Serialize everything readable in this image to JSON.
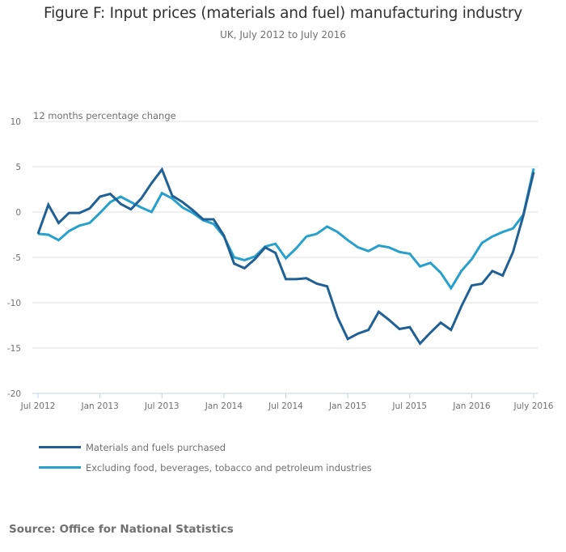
{
  "chart_data": {
    "type": "line",
    "title": "Figure F: Input prices (materials and fuel) manufacturing industry",
    "subtitle": "UK, July 2012 to July 2016",
    "ylabel": "12 months percentage change",
    "xlabel": "",
    "ylim": [
      -20,
      10
    ],
    "yticks": [
      10,
      5,
      0,
      -5,
      -10,
      -15,
      -20
    ],
    "ytick_labels": [
      "10",
      "5",
      "0",
      "-5",
      "-10",
      "-15",
      "-20"
    ],
    "xtick_labels": [
      "Jul 2012",
      "Jan 2013",
      "Jul 2013",
      "Jan 2014",
      "Jul 2014",
      "Jan 2015",
      "Jul 2015",
      "Jan 2016",
      "July 2016"
    ],
    "xtick_index": [
      0,
      6,
      12,
      18,
      24,
      30,
      36,
      42,
      48
    ],
    "x": [
      "Jul 2012",
      "Aug 2012",
      "Sep 2012",
      "Oct 2012",
      "Nov 2012",
      "Dec 2012",
      "Jan 2013",
      "Feb 2013",
      "Mar 2013",
      "Apr 2013",
      "May 2013",
      "Jun 2013",
      "Jul 2013",
      "Aug 2013",
      "Sep 2013",
      "Oct 2013",
      "Nov 2013",
      "Dec 2013",
      "Jan 2014",
      "Feb 2014",
      "Mar 2014",
      "Apr 2014",
      "May 2014",
      "Jun 2014",
      "Jul 2014",
      "Aug 2014",
      "Sep 2014",
      "Oct 2014",
      "Nov 2014",
      "Dec 2014",
      "Jan 2015",
      "Feb 2015",
      "Mar 2015",
      "Apr 2015",
      "May 2015",
      "Jun 2015",
      "Jul 2015",
      "Aug 2015",
      "Sep 2015",
      "Oct 2015",
      "Nov 2015",
      "Dec 2015",
      "Jan 2016",
      "Feb 2016",
      "Mar 2016",
      "Apr 2016",
      "May 2016",
      "Jun 2016",
      "Jul 2016"
    ],
    "series": [
      {
        "name": "Materials and fuels purchased",
        "color": "#206095",
        "values": [
          -2.4,
          0.8,
          -1.2,
          -0.1,
          -0.1,
          0.4,
          1.7,
          2.0,
          0.9,
          0.3,
          1.5,
          3.2,
          4.7,
          1.8,
          1.1,
          0.2,
          -0.8,
          -0.8,
          -2.6,
          -5.7,
          -6.2,
          -5.2,
          -3.9,
          -4.5,
          -7.4,
          -7.4,
          -7.3,
          -7.9,
          -8.2,
          -11.6,
          -14.0,
          -13.4,
          -13.0,
          -11.0,
          -11.9,
          -12.9,
          -12.7,
          -14.5,
          -13.3,
          -12.2,
          -13.0,
          -10.4,
          -8.1,
          -7.9,
          -6.5,
          -7.0,
          -4.4,
          -0.4,
          4.4
        ]
      },
      {
        "name": "Excluding food, beverages, tobacco and petroleum industries",
        "color": "#27a0cc",
        "values": [
          -2.4,
          -2.5,
          -3.1,
          -2.1,
          -1.5,
          -1.2,
          -0.1,
          1.1,
          1.7,
          1.1,
          0.5,
          0.0,
          2.1,
          1.5,
          0.5,
          -0.1,
          -0.9,
          -1.3,
          -2.7,
          -5.0,
          -5.3,
          -4.9,
          -3.8,
          -3.5,
          -5.1,
          -4.0,
          -2.7,
          -2.4,
          -1.6,
          -2.2,
          -3.1,
          -3.9,
          -4.3,
          -3.7,
          -3.9,
          -4.4,
          -4.6,
          -6.0,
          -5.6,
          -6.7,
          -8.4,
          -6.5,
          -5.2,
          -3.4,
          -2.7,
          -2.2,
          -1.8,
          -0.3,
          4.8
        ]
      }
    ],
    "grid": true,
    "legend_position": "bottom-left",
    "source": "Source: Office for National Statistics"
  },
  "colors": {
    "gridline": "#e0e0e0",
    "axis": "#c5d0e3",
    "text": "#707071"
  }
}
